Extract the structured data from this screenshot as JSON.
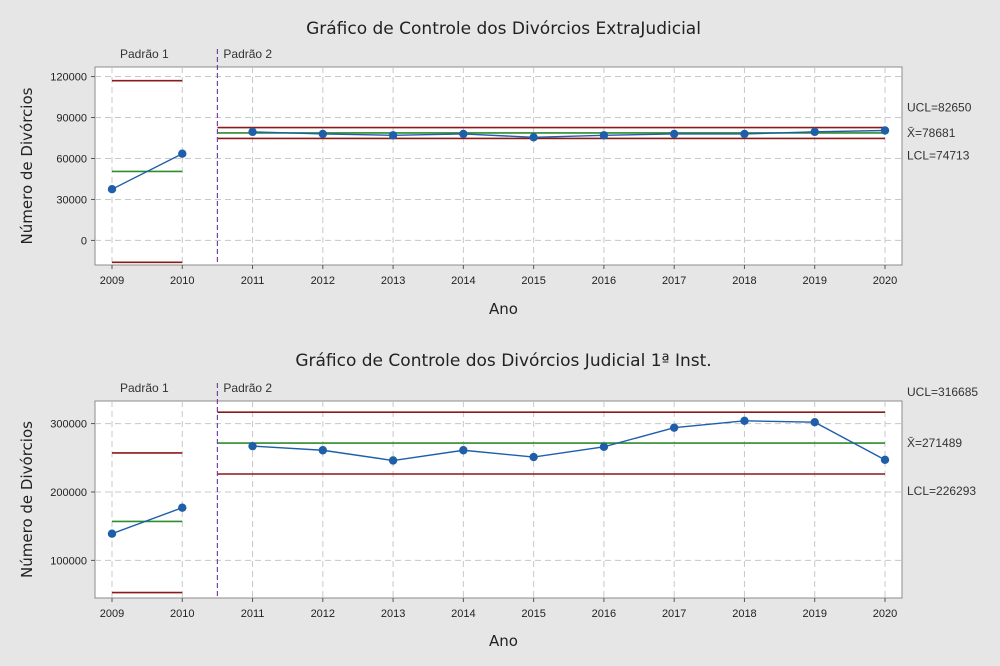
{
  "chart_data": [
    {
      "type": "line",
      "title": "Gráfico de Controle dos Divórcios ExtraJudicial",
      "xlabel": "Ano",
      "ylabel": "Número de Divórcios",
      "x": [
        "2009",
        "2010",
        "2011",
        "2012",
        "2013",
        "2014",
        "2015",
        "2016",
        "2017",
        "2018",
        "2019",
        "2020"
      ],
      "values": [
        37500,
        63500,
        79500,
        78000,
        77000,
        78000,
        75500,
        77000,
        78000,
        78000,
        79500,
        80500
      ],
      "ylim": [
        -18000,
        127000
      ],
      "yticks": [
        0,
        30000,
        60000,
        90000,
        120000
      ],
      "ytick_labels": [
        "0",
        "30000",
        "60000",
        "90000",
        "120000"
      ],
      "stages": [
        {
          "label": "Padrão 1",
          "from": "2009",
          "to": "2010",
          "ucl": 117000,
          "center": 50500,
          "lcl": -16000
        },
        {
          "label": "Padrão 2",
          "from": "2011",
          "to": "2020",
          "ucl": 82650,
          "center": 78681,
          "lcl": 74713
        }
      ],
      "limit_labels": {
        "ucl": "UCL=82650",
        "center": "X̄=78681",
        "lcl": "LCL=74713"
      },
      "grid": true,
      "colors": {
        "data": "#1f5faa",
        "center": "#2e8b2e",
        "limit": "#8b1a1a",
        "stage": "#7a3fa0"
      }
    },
    {
      "type": "line",
      "title": "Gráfico de Controle dos Divórcios Judicial 1ª Inst.",
      "xlabel": "Ano",
      "ylabel": "Número de Divórcios",
      "x": [
        "2009",
        "2010",
        "2011",
        "2012",
        "2013",
        "2014",
        "2015",
        "2016",
        "2017",
        "2018",
        "2019",
        "2020"
      ],
      "values": [
        139000,
        177000,
        267000,
        261000,
        246000,
        261000,
        251000,
        266000,
        294000,
        304000,
        302000,
        247000
      ],
      "ylim": [
        45000,
        333000
      ],
      "yticks": [
        100000,
        200000,
        300000
      ],
      "ytick_labels": [
        "100000",
        "200000",
        "300000"
      ],
      "stages": [
        {
          "label": "Padrão 1",
          "from": "2009",
          "to": "2010",
          "ucl": 257000,
          "center": 157000,
          "lcl": 53000
        },
        {
          "label": "Padrão 2",
          "from": "2011",
          "to": "2020",
          "ucl": 316685,
          "center": 271489,
          "lcl": 226293
        }
      ],
      "limit_labels": {
        "ucl": "UCL=316685",
        "center": "X̄=271489",
        "lcl": "LCL=226293"
      },
      "grid": true,
      "colors": {
        "data": "#1f5faa",
        "center": "#2e8b2e",
        "limit": "#8b1a1a",
        "stage": "#7a3fa0"
      }
    }
  ]
}
